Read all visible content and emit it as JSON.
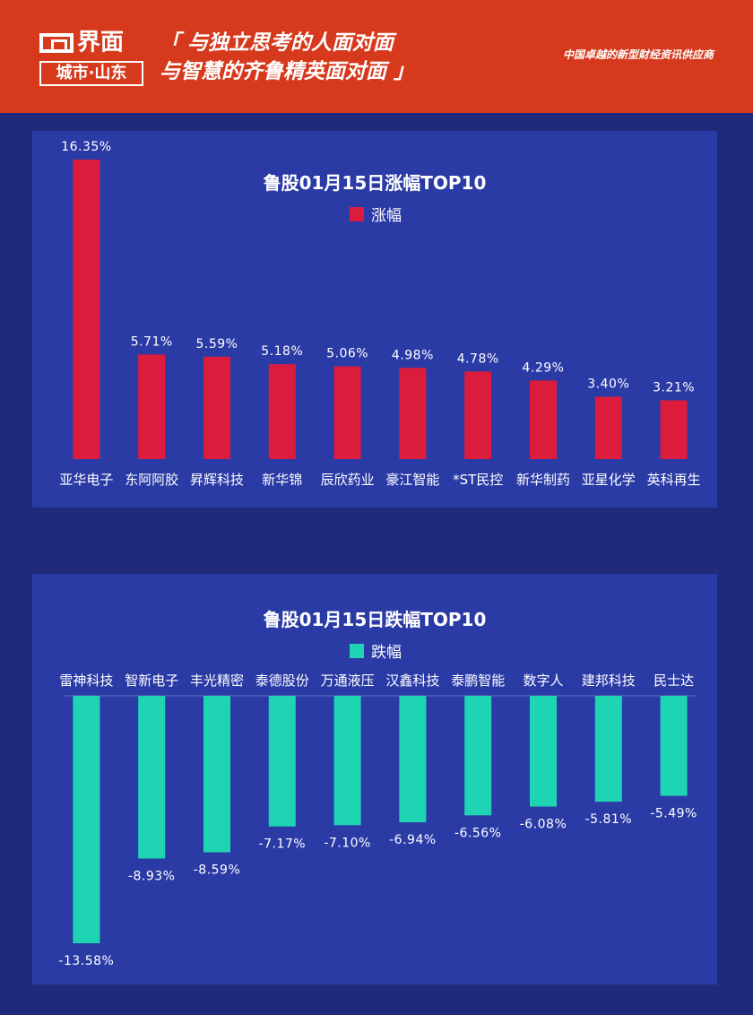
{
  "header": {
    "logo_main": "界面",
    "logo_sub": "城市·山东",
    "slogan_line1": "「 与独立思考的人面对面",
    "slogan_line2": "与智慧的齐鲁精英面对面 」",
    "tagline": "中国卓越的新型财经资讯供应商",
    "background_color": "#d6391c"
  },
  "chart_data": [
    {
      "type": "bar",
      "title": "鲁股01月15日涨幅TOP10",
      "legend": [
        {
          "name": "涨幅",
          "color": "#dc1c3c"
        }
      ],
      "categories": [
        "亚华电子",
        "东阿阿胶",
        "昇辉科技",
        "新华锦",
        "辰欣药业",
        "豪江智能",
        "*ST民控",
        "新华制药",
        "亚星化学",
        "英科再生"
      ],
      "values": [
        16.35,
        5.71,
        5.59,
        5.18,
        5.06,
        4.98,
        4.78,
        4.29,
        3.4,
        3.21
      ],
      "value_labels": [
        "16.35%",
        "5.71%",
        "5.59%",
        "5.18%",
        "5.06%",
        "4.98%",
        "4.78%",
        "4.29%",
        "3.40%",
        "3.21%"
      ],
      "xlabel": "",
      "ylabel": "",
      "ylim": [
        0,
        16.35
      ],
      "grid": false,
      "legend_position": "top-center"
    },
    {
      "type": "bar",
      "title": "鲁股01月15日跌幅TOP10",
      "legend": [
        {
          "name": "跌幅",
          "color": "#1fd4b2"
        }
      ],
      "categories": [
        "雷神科技",
        "智新电子",
        "丰光精密",
        "泰德股份",
        "万通液压",
        "汉鑫科技",
        "泰鹏智能",
        "数字人",
        "建邦科技",
        "民士达"
      ],
      "values": [
        -13.58,
        -8.93,
        -8.59,
        -7.17,
        -7.1,
        -6.94,
        -6.56,
        -6.08,
        -5.81,
        -5.49
      ],
      "value_labels": [
        "-13.58%",
        "-8.93%",
        "-8.59%",
        "-7.17%",
        "-7.10%",
        "-6.94%",
        "-6.56%",
        "-6.08%",
        "-5.81%",
        "-5.49%"
      ],
      "xlabel": "",
      "ylabel": "",
      "ylim": [
        -13.58,
        0
      ],
      "grid": false,
      "legend_position": "top-center"
    }
  ]
}
